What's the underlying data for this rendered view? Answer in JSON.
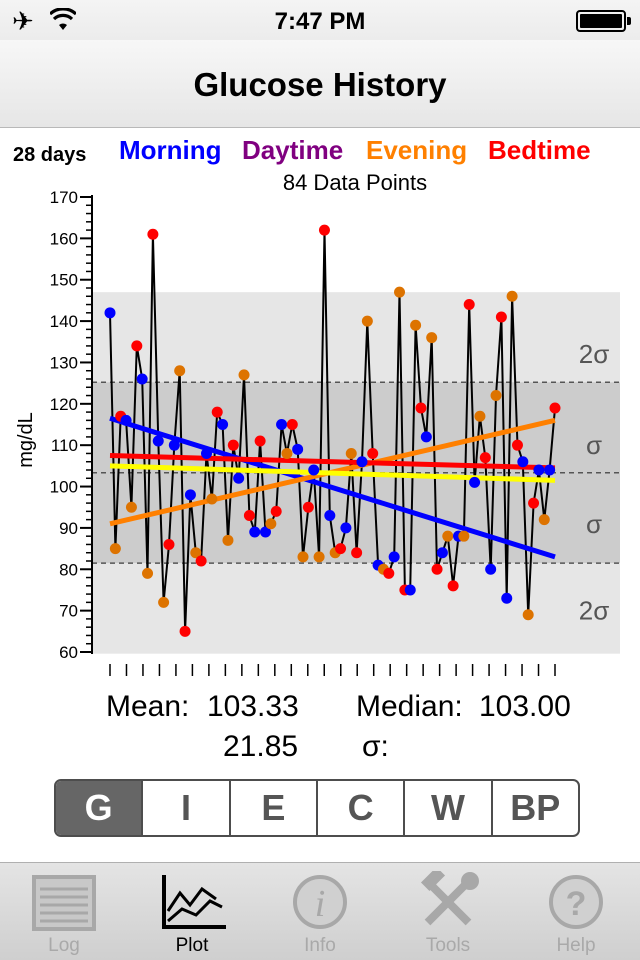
{
  "status_bar": {
    "time": "7:47 PM",
    "airplane_icon": "airplane-icon",
    "wifi_icon": "wifi-icon",
    "battery_icon": "battery-icon"
  },
  "nav": {
    "title": "Glucose History"
  },
  "header": {
    "period": "28 days",
    "legend": [
      {
        "name": "Morning",
        "color": "#0000ff"
      },
      {
        "name": "Daytime",
        "color": "#800080"
      },
      {
        "name": "Evening",
        "color": "#ff8000"
      },
      {
        "name": "Bedtime",
        "color": "#ff0000"
      }
    ],
    "count_text": "84 Data Points"
  },
  "chart_data": {
    "type": "line",
    "ylabel": "mg/dL",
    "ylim": [
      60,
      170
    ],
    "yticks": [
      60,
      70,
      80,
      90,
      100,
      110,
      120,
      130,
      140,
      150,
      160,
      170
    ],
    "mean": 103.33,
    "sigma": 21.85,
    "bands": [
      {
        "from": 59.6,
        "to": 147.0,
        "label": "2σ",
        "label_value": 132,
        "color": "#e6e6e6"
      },
      {
        "from": 81.5,
        "to": 125.2,
        "label": "σ",
        "label_value": 110,
        "color": "#cccccc"
      }
    ],
    "band_labels": [
      "2σ",
      "σ",
      "σ",
      "2σ"
    ],
    "band_label_values": [
      132,
      110,
      91,
      70
    ],
    "dashed_lines": [
      81.5,
      103.33,
      125.2
    ],
    "points": [
      {
        "v": 142,
        "c": "m"
      },
      {
        "v": 85,
        "c": "e"
      },
      {
        "v": 117,
        "c": "b"
      },
      {
        "v": 116,
        "c": "m"
      },
      {
        "v": 95,
        "c": "e"
      },
      {
        "v": 134,
        "c": "b"
      },
      {
        "v": 126,
        "c": "m"
      },
      {
        "v": 79,
        "c": "e"
      },
      {
        "v": 161,
        "c": "b"
      },
      {
        "v": 111,
        "c": "m"
      },
      {
        "v": 72,
        "c": "e"
      },
      {
        "v": 86,
        "c": "b"
      },
      {
        "v": 110,
        "c": "m"
      },
      {
        "v": 128,
        "c": "e"
      },
      {
        "v": 65,
        "c": "b"
      },
      {
        "v": 98,
        "c": "m"
      },
      {
        "v": 84,
        "c": "e"
      },
      {
        "v": 82,
        "c": "b"
      },
      {
        "v": 108,
        "c": "m"
      },
      {
        "v": 97,
        "c": "e"
      },
      {
        "v": 118,
        "c": "b"
      },
      {
        "v": 115,
        "c": "m"
      },
      {
        "v": 87,
        "c": "e"
      },
      {
        "v": 110,
        "c": "b"
      },
      {
        "v": 102,
        "c": "m"
      },
      {
        "v": 127,
        "c": "e"
      },
      {
        "v": 93,
        "c": "b"
      },
      {
        "v": 89,
        "c": "m"
      },
      {
        "v": 111,
        "c": "b"
      },
      {
        "v": 89,
        "c": "m"
      },
      {
        "v": 91,
        "c": "e"
      },
      {
        "v": 94,
        "c": "b"
      },
      {
        "v": 115,
        "c": "m"
      },
      {
        "v": 108,
        "c": "e"
      },
      {
        "v": 115,
        "c": "b"
      },
      {
        "v": 109,
        "c": "m"
      },
      {
        "v": 83,
        "c": "e"
      },
      {
        "v": 95,
        "c": "b"
      },
      {
        "v": 104,
        "c": "m"
      },
      {
        "v": 83,
        "c": "e"
      },
      {
        "v": 162,
        "c": "b"
      },
      {
        "v": 93,
        "c": "m"
      },
      {
        "v": 84,
        "c": "e"
      },
      {
        "v": 85,
        "c": "b"
      },
      {
        "v": 90,
        "c": "m"
      },
      {
        "v": 108,
        "c": "e"
      },
      {
        "v": 84,
        "c": "b"
      },
      {
        "v": 106,
        "c": "m"
      },
      {
        "v": 140,
        "c": "e"
      },
      {
        "v": 108,
        "c": "b"
      },
      {
        "v": 81,
        "c": "m"
      },
      {
        "v": 80,
        "c": "e"
      },
      {
        "v": 79,
        "c": "b"
      },
      {
        "v": 83,
        "c": "m"
      },
      {
        "v": 147,
        "c": "e"
      },
      {
        "v": 75,
        "c": "b"
      },
      {
        "v": 75,
        "c": "m"
      },
      {
        "v": 139,
        "c": "e"
      },
      {
        "v": 119,
        "c": "b"
      },
      {
        "v": 112,
        "c": "m"
      },
      {
        "v": 136,
        "c": "e"
      },
      {
        "v": 80,
        "c": "b"
      },
      {
        "v": 84,
        "c": "m"
      },
      {
        "v": 88,
        "c": "e"
      },
      {
        "v": 76,
        "c": "b"
      },
      {
        "v": 88,
        "c": "m"
      },
      {
        "v": 88,
        "c": "e"
      },
      {
        "v": 144,
        "c": "b"
      },
      {
        "v": 101,
        "c": "m"
      },
      {
        "v": 117,
        "c": "e"
      },
      {
        "v": 107,
        "c": "b"
      },
      {
        "v": 80,
        "c": "m"
      },
      {
        "v": 122,
        "c": "e"
      },
      {
        "v": 141,
        "c": "b"
      },
      {
        "v": 73,
        "c": "m"
      },
      {
        "v": 146,
        "c": "e"
      },
      {
        "v": 110,
        "c": "b"
      },
      {
        "v": 106,
        "c": "m"
      },
      {
        "v": 69,
        "c": "e"
      },
      {
        "v": 96,
        "c": "b"
      },
      {
        "v": 104,
        "c": "m"
      },
      {
        "v": 92,
        "c": "e"
      },
      {
        "v": 104,
        "c": "m"
      },
      {
        "v": 119,
        "c": "b"
      }
    ],
    "trend_lines": [
      {
        "name": "Morning",
        "color": "#0000ff",
        "y0": 116.5,
        "y1": 83.0
      },
      {
        "name": "Evening",
        "color": "#ff8000",
        "y0": 91.0,
        "y1": 116.0
      },
      {
        "name": "Bedtime",
        "color": "#ff0000",
        "y0": 107.5,
        "y1": 104.5
      },
      {
        "name": "Overall",
        "color": "#ffff00",
        "y0": 105.0,
        "y1": 101.5
      }
    ],
    "point_colors": {
      "m": "#0000ff",
      "d": "#800080",
      "e": "#dd7300",
      "b": "#ff0000"
    }
  },
  "stats": {
    "mean_label": "Mean:",
    "mean_value": "103.33",
    "median_label": "Median:",
    "median_value": "103.00",
    "sigma_value": "21.85",
    "sigma_label": "σ:"
  },
  "segments": [
    "G",
    "I",
    "E",
    "C",
    "W",
    "BP"
  ],
  "active_segment": "G",
  "tabs": [
    {
      "label": "Log",
      "icon": "log-icon"
    },
    {
      "label": "Plot",
      "icon": "plot-icon"
    },
    {
      "label": "Info",
      "icon": "info-icon"
    },
    {
      "label": "Tools",
      "icon": "tools-icon"
    },
    {
      "label": "Help",
      "icon": "help-icon"
    }
  ],
  "active_tab": "Plot"
}
